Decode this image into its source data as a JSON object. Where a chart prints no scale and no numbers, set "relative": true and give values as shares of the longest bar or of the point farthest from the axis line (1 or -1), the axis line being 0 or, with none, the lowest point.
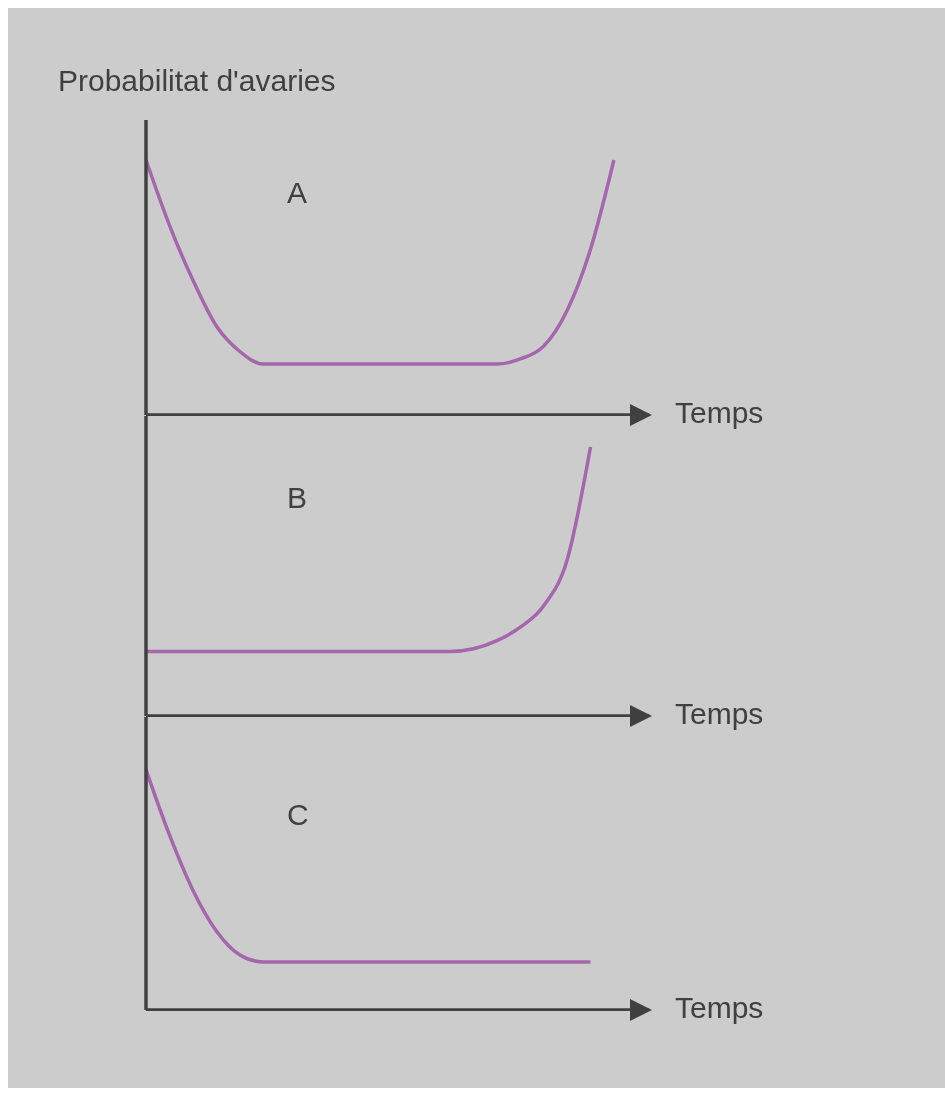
{
  "chart_data": [
    {
      "type": "line",
      "ylabel": "Probabilitat d'avaries",
      "xlabel": "Temps",
      "annotations": [
        "A"
      ],
      "relative": true,
      "marker": "none",
      "categories": [
        null,
        null,
        null,
        null,
        null,
        null,
        null,
        null,
        null,
        null,
        null,
        null,
        null,
        null,
        null,
        null,
        null,
        null,
        null,
        null,
        null
      ],
      "series": [
        {
          "color": "#a566ae",
          "values": [
            1.0,
            0.745,
            0.53,
            0.35,
            0.25,
            0.2,
            0.2,
            0.2,
            0.2,
            0.2,
            0.2,
            0.2,
            0.2,
            0.2,
            0.2,
            0.2,
            0.22,
            0.27,
            0.41,
            0.65,
            1.0
          ]
        }
      ]
    },
    {
      "type": "line",
      "xlabel": "Temps",
      "annotations": [
        "B"
      ],
      "relative": true,
      "marker": "none",
      "categories": [
        null,
        null,
        null,
        null,
        null,
        null,
        null,
        null,
        null,
        null,
        null,
        null,
        null,
        null,
        null,
        null,
        null,
        null,
        null,
        null,
        null
      ],
      "series": [
        {
          "color": "#a566ae",
          "values": [
            0.24,
            0.24,
            0.24,
            0.24,
            0.24,
            0.24,
            0.24,
            0.24,
            0.24,
            0.24,
            0.24,
            0.24,
            0.24,
            0.24,
            0.25,
            0.28,
            0.33,
            0.41,
            0.58,
            1.0,
            null
          ]
        }
      ]
    },
    {
      "type": "line",
      "xlabel": "Temps",
      "annotations": [
        "C"
      ],
      "relative": true,
      "marker": "none",
      "categories": [
        null,
        null,
        null,
        null,
        null,
        null,
        null,
        null,
        null,
        null,
        null,
        null,
        null,
        null,
        null,
        null,
        null,
        null,
        null,
        null,
        null
      ],
      "series": [
        {
          "color": "#a566ae",
          "values": [
            1.0,
            0.73,
            0.5,
            0.33,
            0.23,
            0.2,
            0.2,
            0.2,
            0.2,
            0.2,
            0.2,
            0.2,
            0.2,
            0.2,
            0.2,
            0.2,
            0.2,
            0.2,
            0.2,
            0.2,
            null
          ]
        }
      ]
    }
  ]
}
